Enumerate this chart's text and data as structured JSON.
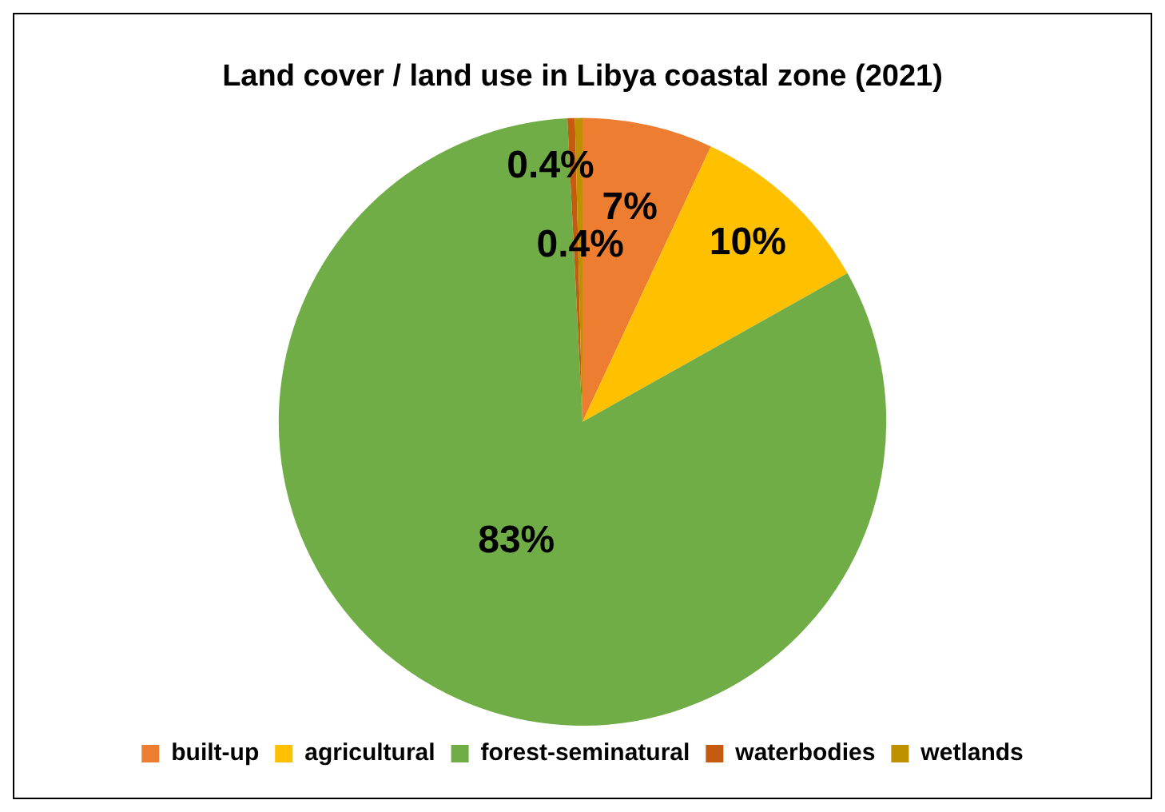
{
  "chart_data": {
    "type": "pie",
    "title": "Land cover / land use in Libya coastal zone (2021)",
    "categories": [
      "built-up",
      "agricultural",
      "forest-seminatural",
      "waterbodies",
      "wetlands"
    ],
    "values": [
      7,
      10,
      83,
      0.4,
      0.4
    ],
    "colors": [
      "#ed7d31",
      "#ffc000",
      "#70ad47",
      "#c55a11",
      "#bf9000"
    ],
    "value_labels": [
      "7%",
      "10%",
      "83%",
      "0.4%",
      "0.4%"
    ],
    "legend": "bottom"
  }
}
